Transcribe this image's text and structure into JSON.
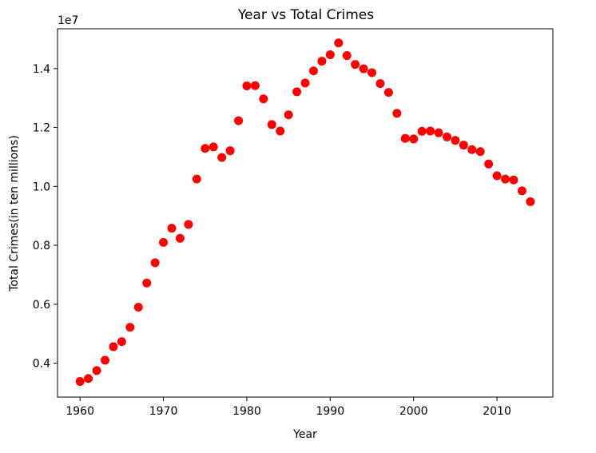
{
  "chart_data": {
    "type": "scatter",
    "title": "Year vs Total Crimes",
    "xlabel": "Year",
    "ylabel": "Total Crimes(in ten millions)",
    "offset_label": "1e7",
    "xlim": [
      1957.3,
      2016.7
    ],
    "ylim": [
      2850000,
      15350000
    ],
    "x_ticks": [
      1960,
      1970,
      1980,
      1990,
      2000,
      2010
    ],
    "y_ticks": [
      4000000,
      6000000,
      8000000,
      10000000,
      12000000,
      14000000
    ],
    "y_tick_labels": [
      "0.4",
      "0.6",
      "0.8",
      "1.0",
      "1.2",
      "1.4"
    ],
    "grid": false,
    "marker_color": "#ff0000",
    "series": [
      {
        "x": [
          1960,
          1961,
          1962,
          1963,
          1964,
          1965,
          1966,
          1967,
          1968,
          1969,
          1970,
          1971,
          1972,
          1973,
          1974,
          1975,
          1976,
          1977,
          1978,
          1979,
          1980,
          1981,
          1982,
          1983,
          1984,
          1985,
          1986,
          1987,
          1988,
          1989,
          1990,
          1991,
          1992,
          1993,
          1994,
          1995,
          1996,
          1997,
          1998,
          1999,
          2000,
          2001,
          2002,
          2003,
          2004,
          2005,
          2006,
          2007,
          2008,
          2009,
          2010,
          2011,
          2012,
          2013,
          2014
        ],
        "y": [
          3380000,
          3480000,
          3750000,
          4100000,
          4560000,
          4730000,
          5220000,
          5900000,
          6720000,
          7410000,
          8100000,
          8580000,
          8240000,
          8710000,
          10250000,
          11290000,
          11340000,
          10980000,
          11210000,
          12230000,
          13410000,
          13420000,
          12970000,
          12100000,
          11880000,
          12430000,
          13210000,
          13510000,
          13920000,
          14250000,
          14470000,
          14870000,
          14440000,
          14140000,
          13990000,
          13860000,
          13490000,
          13190000,
          12480000,
          11630000,
          11610000,
          11870000,
          11880000,
          11820000,
          11680000,
          11560000,
          11400000,
          11250000,
          11180000,
          10760000,
          10360000,
          10250000,
          10220000,
          9850000,
          9480000
        ]
      }
    ]
  }
}
